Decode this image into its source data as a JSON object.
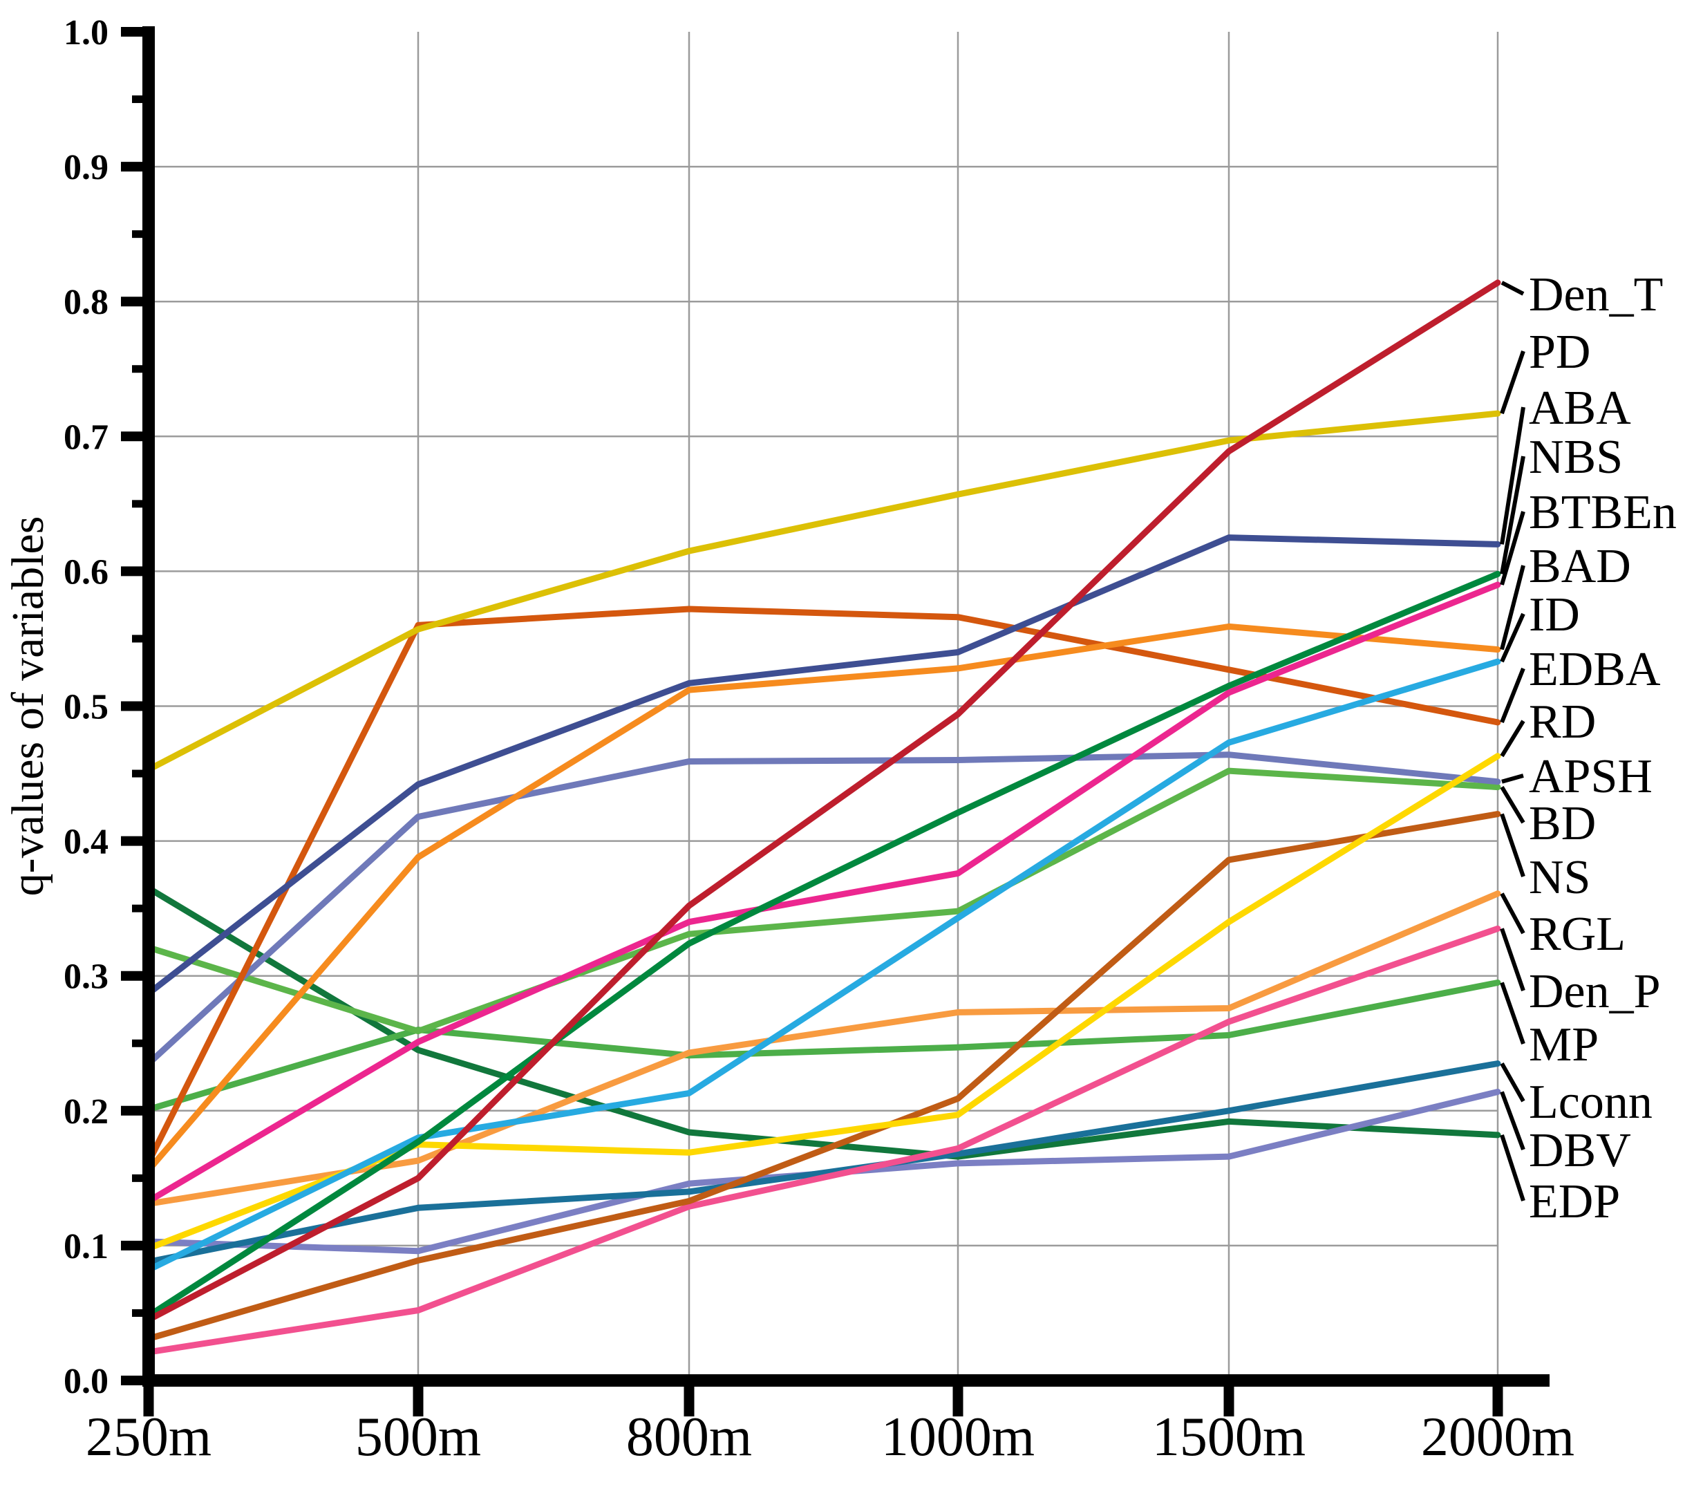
{
  "chart_data": {
    "type": "line",
    "title": "",
    "xlabel": "",
    "ylabel": "q-values of variables",
    "ylim": [
      0.0,
      1.0
    ],
    "y_tick_step": 0.1,
    "y_tick_labels": [
      "0.0",
      "0.1",
      "0.2",
      "0.3",
      "0.4",
      "0.5",
      "0.6",
      "0.7",
      "0.8",
      "0.9",
      "1.0"
    ],
    "grid": true,
    "legend_position": "right-edge-leader-labels",
    "categories": [
      "250m",
      "500m",
      "800m",
      "1000m",
      "1500m",
      "2000m"
    ],
    "series": [
      {
        "name": "Den_T",
        "color": "#be1e2d",
        "values": [
          0.045,
          0.15,
          0.352,
          0.494,
          0.689,
          0.814
        ]
      },
      {
        "name": "PD",
        "color": "#dcc005",
        "values": [
          0.453,
          0.557,
          0.615,
          0.657,
          0.697,
          0.717
        ]
      },
      {
        "name": "ABA",
        "color": "#3e4e92",
        "values": [
          0.287,
          0.442,
          0.517,
          0.54,
          0.625,
          0.62
        ]
      },
      {
        "name": "NBS",
        "color": "#00883e",
        "values": [
          0.048,
          0.177,
          0.324,
          0.421,
          0.515,
          0.598
        ]
      },
      {
        "name": "BTBEn",
        "color": "#ec268f",
        "values": [
          0.133,
          0.251,
          0.34,
          0.376,
          0.51,
          0.59
        ]
      },
      {
        "name": "BAD",
        "color": "#f68b1e",
        "values": [
          0.156,
          0.388,
          0.512,
          0.528,
          0.559,
          0.542
        ]
      },
      {
        "name": "ID",
        "color": "#27aae1",
        "values": [
          0.082,
          0.18,
          0.213,
          0.343,
          0.473,
          0.533
        ]
      },
      {
        "name": "EDBA",
        "color": "#d4570e",
        "values": [
          0.162,
          0.56,
          0.572,
          0.566,
          0.527,
          0.488
        ]
      },
      {
        "name": "RD",
        "color": "#fed800",
        "values": [
          0.098,
          0.175,
          0.169,
          0.197,
          0.34,
          0.463
        ]
      },
      {
        "name": "APSH",
        "color": "#6f79b9",
        "values": [
          0.235,
          0.418,
          0.459,
          0.46,
          0.464,
          0.444
        ]
      },
      {
        "name": "BD",
        "color": "#5cb54a",
        "values": [
          0.321,
          0.259,
          0.331,
          0.348,
          0.452,
          0.44
        ]
      },
      {
        "name": "NS",
        "color": "#c05c15",
        "values": [
          0.031,
          0.089,
          0.133,
          0.209,
          0.386,
          0.42
        ]
      },
      {
        "name": "RGL",
        "color": "#f89b40",
        "values": [
          0.131,
          0.163,
          0.243,
          0.273,
          0.276,
          0.361
        ]
      },
      {
        "name": "Den_P",
        "color": "#f2508f",
        "values": [
          0.021,
          0.052,
          0.129,
          0.172,
          0.266,
          0.335
        ]
      },
      {
        "name": "MP",
        "color": "#4cae49",
        "values": [
          0.201,
          0.26,
          0.241,
          0.247,
          0.256,
          0.295
        ]
      },
      {
        "name": "Lconn",
        "color": "#1a7099",
        "values": [
          0.088,
          0.128,
          0.14,
          0.168,
          0.2,
          0.235
        ]
      },
      {
        "name": "DBV",
        "color": "#7b7fc3",
        "values": [
          0.103,
          0.096,
          0.146,
          0.161,
          0.166,
          0.214
        ]
      },
      {
        "name": "EDP",
        "color": "#11773c",
        "values": [
          0.365,
          0.245,
          0.184,
          0.166,
          0.192,
          0.182
        ]
      }
    ]
  }
}
